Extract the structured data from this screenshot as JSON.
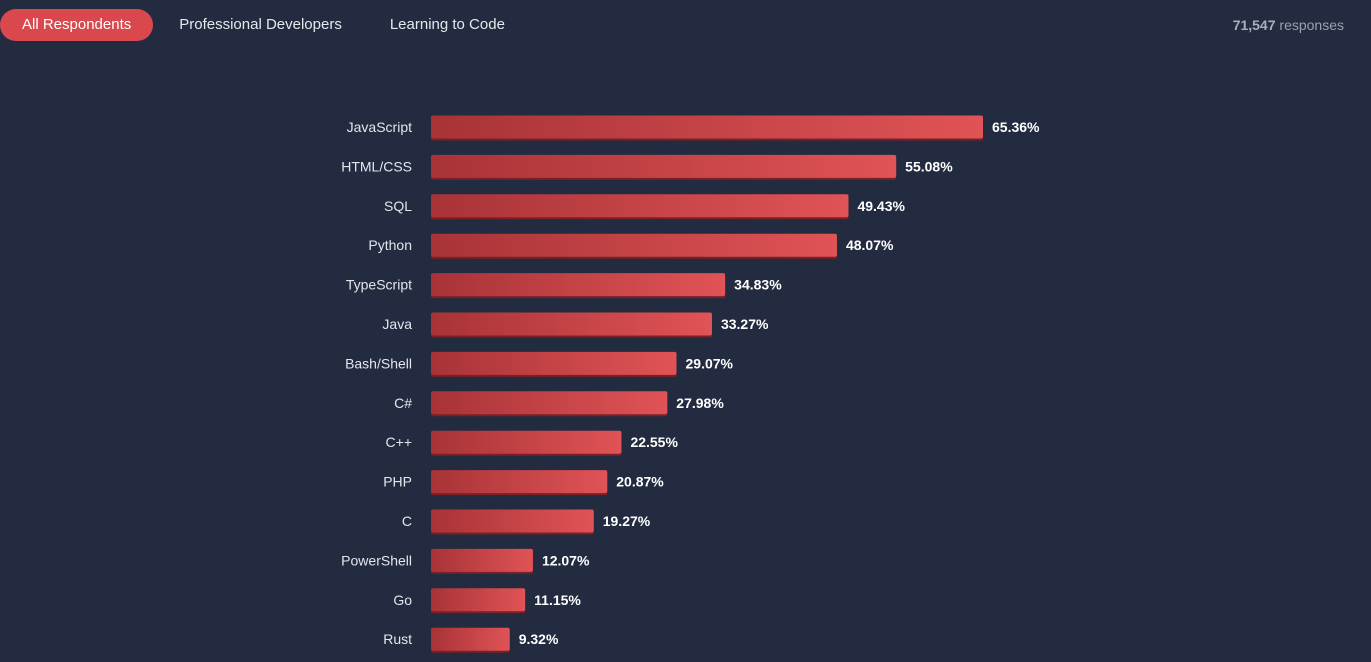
{
  "filters": {
    "tabs": [
      {
        "label": "All Respondents",
        "active": true
      },
      {
        "label": "Professional Developers",
        "active": false
      },
      {
        "label": "Learning to Code",
        "active": false
      }
    ]
  },
  "responses": {
    "count": "71,547",
    "unit": "responses"
  },
  "colors": {
    "bar_start": "#a83337",
    "bar_end": "#e05356",
    "bar_shadow": "#7d1f24",
    "background": "#232b40",
    "active_tab": "#d9484c"
  },
  "chart_data": {
    "type": "bar",
    "orientation": "horizontal",
    "categories": [
      "JavaScript",
      "HTML/CSS",
      "SQL",
      "Python",
      "TypeScript",
      "Java",
      "Bash/Shell",
      "C#",
      "C++",
      "PHP",
      "C",
      "PowerShell",
      "Go",
      "Rust"
    ],
    "values": [
      65.36,
      55.08,
      49.43,
      48.07,
      34.83,
      33.27,
      29.07,
      27.98,
      22.55,
      20.87,
      19.27,
      12.07,
      11.15,
      9.32
    ],
    "value_labels": [
      "65.36%",
      "55.08%",
      "49.43%",
      "48.07%",
      "34.83%",
      "33.27%",
      "29.07%",
      "27.98%",
      "22.55%",
      "20.87%",
      "19.27%",
      "12.07%",
      "11.15%",
      "9.32%"
    ],
    "unit": "%",
    "title": "",
    "xlabel": "",
    "ylabel": "",
    "grid": false,
    "legend": false
  }
}
